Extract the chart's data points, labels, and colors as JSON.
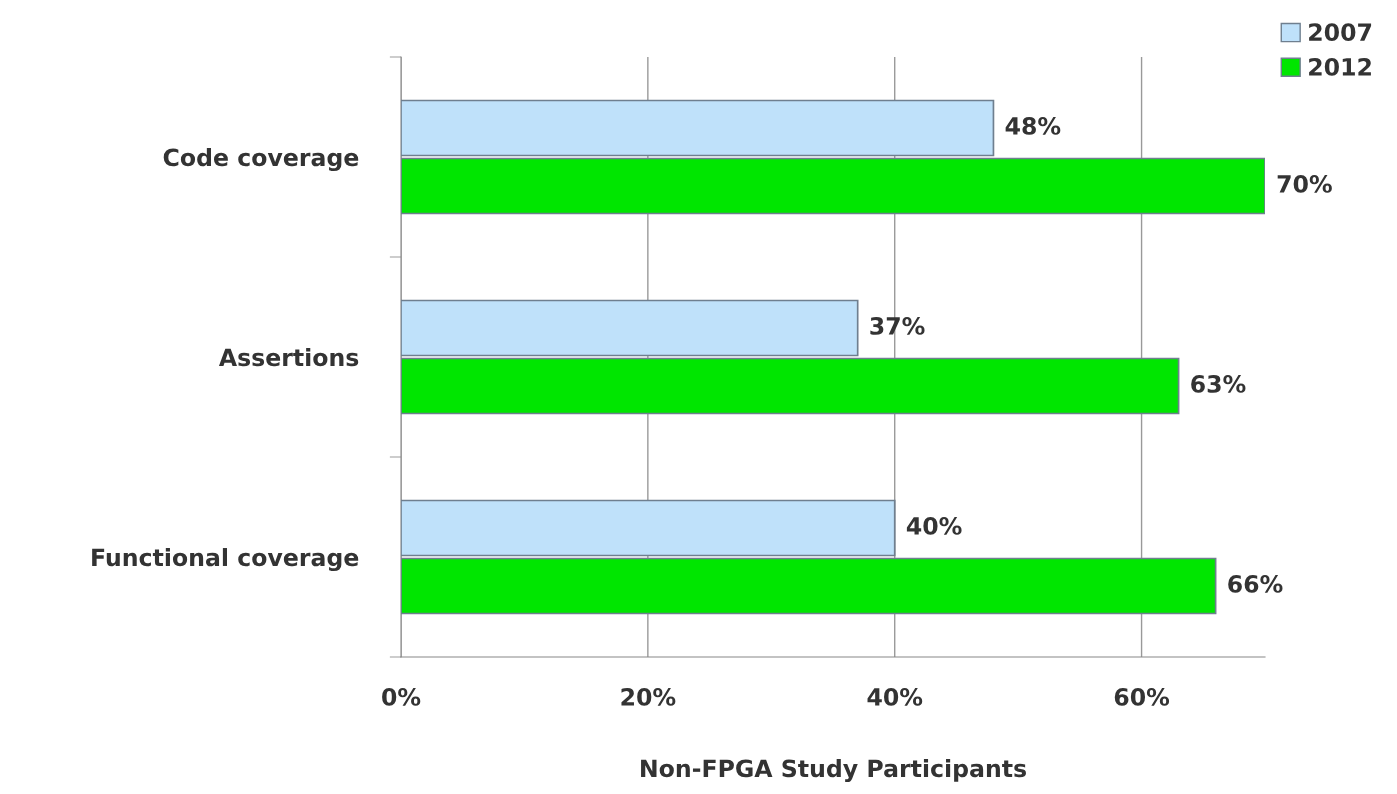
{
  "chart_data": {
    "type": "bar",
    "orientation": "horizontal",
    "xlabel": "Non-FPGA Study Participants",
    "categories": [
      "Code coverage",
      "Assertions",
      "Functional coverage"
    ],
    "series": [
      {
        "name": "2007",
        "color": "#bfe1fa",
        "values": [
          48,
          37,
          40
        ],
        "value_labels": [
          "48%",
          "37%",
          "40%"
        ]
      },
      {
        "name": "2012",
        "color": "#00e600",
        "values": [
          70,
          63,
          66
        ],
        "value_labels": [
          "70%",
          "63%",
          "66%"
        ]
      }
    ],
    "xlim": [
      0,
      70
    ],
    "xticks": [
      {
        "value": 0,
        "label": "0%"
      },
      {
        "value": 20,
        "label": "20%"
      },
      {
        "value": 40,
        "label": "40%"
      },
      {
        "value": 60,
        "label": "60%"
      }
    ],
    "grid": "x",
    "legend": "top right"
  }
}
